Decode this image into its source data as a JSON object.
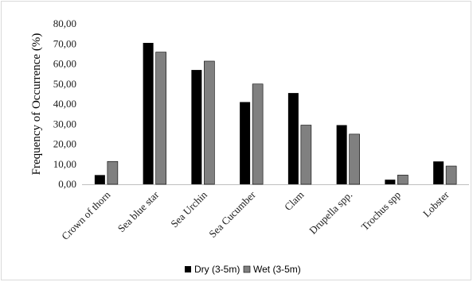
{
  "chart_data": {
    "type": "bar",
    "title": "",
    "xlabel": "",
    "ylabel": "Frequency of Occurrence (%)",
    "ylim": [
      0,
      80
    ],
    "yticks": [
      "0,00",
      "10,00",
      "20,00",
      "30,00",
      "40,00",
      "50,00",
      "60,00",
      "70,00",
      "80,00"
    ],
    "grid": false,
    "legend": "bottom",
    "categories": [
      "Crown of thorn",
      "Sea blue star",
      "Sea Urchin",
      "Sea Cucumber",
      "Clam",
      "Drupella spp.",
      "Trochus spp",
      "Lobster"
    ],
    "series": [
      {
        "name": "Dry (3-5m)",
        "color": "#000000",
        "values": [
          4.6,
          70.5,
          57.0,
          41.0,
          45.5,
          29.5,
          2.3,
          11.4
        ]
      },
      {
        "name": "Wet (3-5m)",
        "color": "#808080",
        "values": [
          11.4,
          65.9,
          61.4,
          50.0,
          29.5,
          25.0,
          4.6,
          9.1
        ]
      }
    ]
  }
}
